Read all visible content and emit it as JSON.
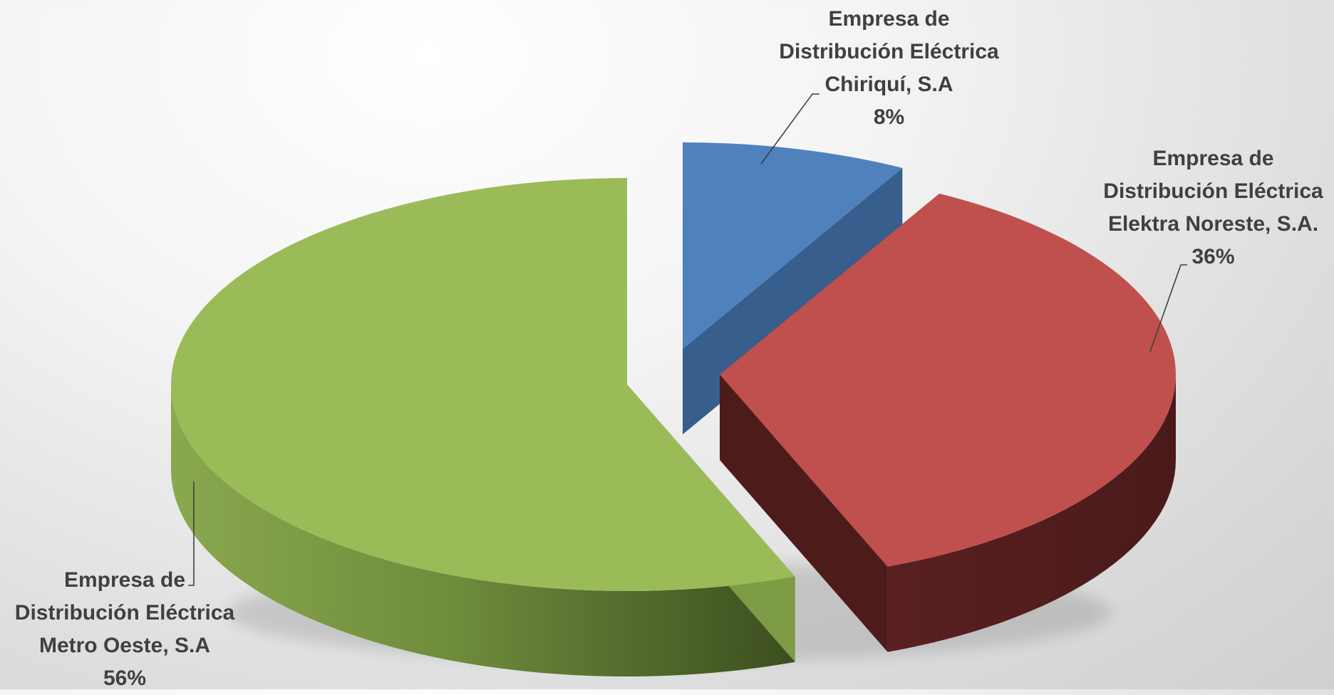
{
  "chart_data": {
    "type": "pie",
    "style": "3d-exploded",
    "title": "",
    "legend": "none",
    "slices": [
      {
        "label_lines": [
          "Empresa de",
          "Distribución Eléctrica",
          "Chiriquí, S.A"
        ],
        "percent_label": "8%",
        "value": 8,
        "color": "#4f81bd"
      },
      {
        "label_lines": [
          "Empresa de",
          "Distribución Eléctrica",
          "Elektra Noreste, S.A."
        ],
        "percent_label": "36%",
        "value": 36,
        "color": "#c0504d"
      },
      {
        "label_lines": [
          "Empresa de",
          "Distribución Eléctrica",
          "Metro Oeste, S.A"
        ],
        "percent_label": "56%",
        "value": 56,
        "color": "#9bbb59"
      }
    ]
  }
}
